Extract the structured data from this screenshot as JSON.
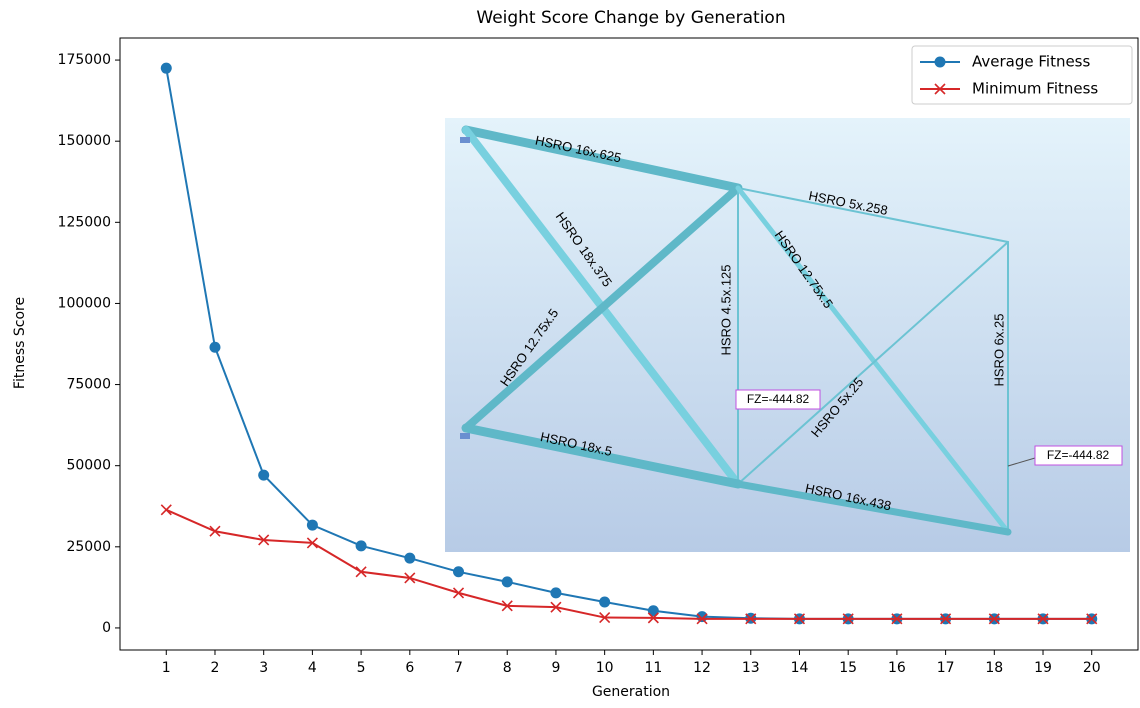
{
  "chart_data": {
    "type": "line",
    "title": "Weight Score Change by Generation",
    "x_label": "Generation",
    "y_label": "Fitness Score",
    "x": [
      1,
      2,
      3,
      4,
      5,
      6,
      7,
      8,
      9,
      10,
      11,
      12,
      13,
      14,
      15,
      16,
      17,
      18,
      19,
      20
    ],
    "series": [
      {
        "name": "Average Fitness",
        "color": "#1f77b4",
        "marker": "circle",
        "values": [
          172500,
          86500,
          47100,
          31700,
          25300,
          21500,
          17300,
          14200,
          10800,
          8000,
          5300,
          3500,
          3000,
          2800,
          2800,
          2800,
          2800,
          2800,
          2800,
          2800
        ]
      },
      {
        "name": "Minimum Fitness",
        "color": "#d62728",
        "marker": "x",
        "values": [
          36400,
          29800,
          27100,
          26200,
          17300,
          15400,
          10800,
          6800,
          6400,
          3200,
          3100,
          2800,
          2800,
          2800,
          2800,
          2800,
          2800,
          2800,
          2800,
          2800
        ]
      }
    ],
    "xlim": [
      0.05,
      20.95
    ],
    "ylim": [
      -6800,
      181800
    ],
    "xticks": [
      1,
      2,
      3,
      4,
      5,
      6,
      7,
      8,
      9,
      10,
      11,
      12,
      13,
      14,
      15,
      16,
      17,
      18,
      19,
      20
    ],
    "yticks": [
      0,
      25000,
      50000,
      75000,
      100000,
      125000,
      150000,
      175000
    ],
    "legend": "upper right",
    "inset_labels": [
      "HSRO 16x.625",
      "HSRO 5x.258",
      "HSRO 18x.375",
      "HSRO 12.75x.5",
      "HSRO 4.5x.125",
      "HSRO 12.75x.5",
      "HSRO 5x.25",
      "HSRO 6x.25",
      "HSRO 18x.5",
      "HSRO 16x.438",
      "FZ=-444.82",
      "FZ=-444.82"
    ]
  }
}
